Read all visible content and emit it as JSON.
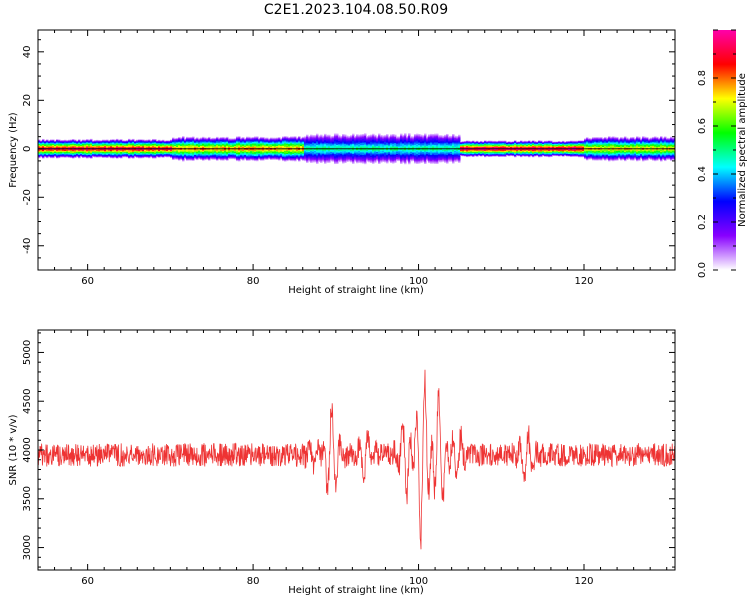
{
  "title": "C2E1.2023.104.08.50.R09",
  "chart_data": [
    {
      "type": "heatmap",
      "xlabel": "Height of straight line (km)",
      "ylabel": "Frequency (Hz)",
      "xlim": [
        54,
        131
      ],
      "ylim": [
        -50,
        49
      ],
      "xticks": [
        60,
        80,
        100,
        120
      ],
      "yticks": [
        -40,
        -20,
        0,
        20,
        40
      ],
      "colorbar": {
        "label": "Normalized spectral amplitude",
        "range": [
          0,
          1
        ],
        "ticks": [
          "0.0",
          "0.2",
          "0.4",
          "0.6",
          "0.8"
        ],
        "colors": [
          "#ffffff",
          "#8800ff",
          "#0000ff",
          "#00ffff",
          "#00ff00",
          "#ffff00",
          "#ff0000",
          "#ff00aa"
        ]
      },
      "band": {
        "center_hz": 0,
        "segments": [
          {
            "x": [
              54,
              70
            ],
            "halfwidth_hz": 2.5,
            "core_level": 0.9
          },
          {
            "x": [
              70,
              86
            ],
            "halfwidth_hz": 3.5,
            "core_level": 0.75
          },
          {
            "x": [
              86,
              105
            ],
            "halfwidth_hz": 4.5,
            "core_level": 0.45
          },
          {
            "x": [
              105,
              120
            ],
            "halfwidth_hz": 2.0,
            "core_level": 0.95
          },
          {
            "x": [
              120,
              131
            ],
            "halfwidth_hz": 3.5,
            "core_level": 0.7
          }
        ]
      }
    },
    {
      "type": "line",
      "xlabel": "Height of straight line (km)",
      "ylabel": "SNR (10 * v/v)",
      "xlim": [
        54,
        131
      ],
      "ylim": [
        2770,
        5230
      ],
      "xticks": [
        60,
        80,
        100,
        120
      ],
      "yticks": [
        3000,
        3500,
        4000,
        4500,
        5000
      ],
      "color": "#ee3333",
      "baseline": 3950,
      "noise_amplitude": 120,
      "bursts": [
        {
          "x": 87.5,
          "amplitude": 150
        },
        {
          "x": 89.5,
          "amplitude": 600
        },
        {
          "x": 93.5,
          "amplitude": 300
        },
        {
          "x": 98.5,
          "amplitude": 450
        },
        {
          "x": 100.5,
          "amplitude": 1100
        },
        {
          "x": 102.5,
          "amplitude": 700
        },
        {
          "x": 104.5,
          "amplitude": 350
        },
        {
          "x": 113.0,
          "amplitude": 300
        }
      ]
    }
  ]
}
